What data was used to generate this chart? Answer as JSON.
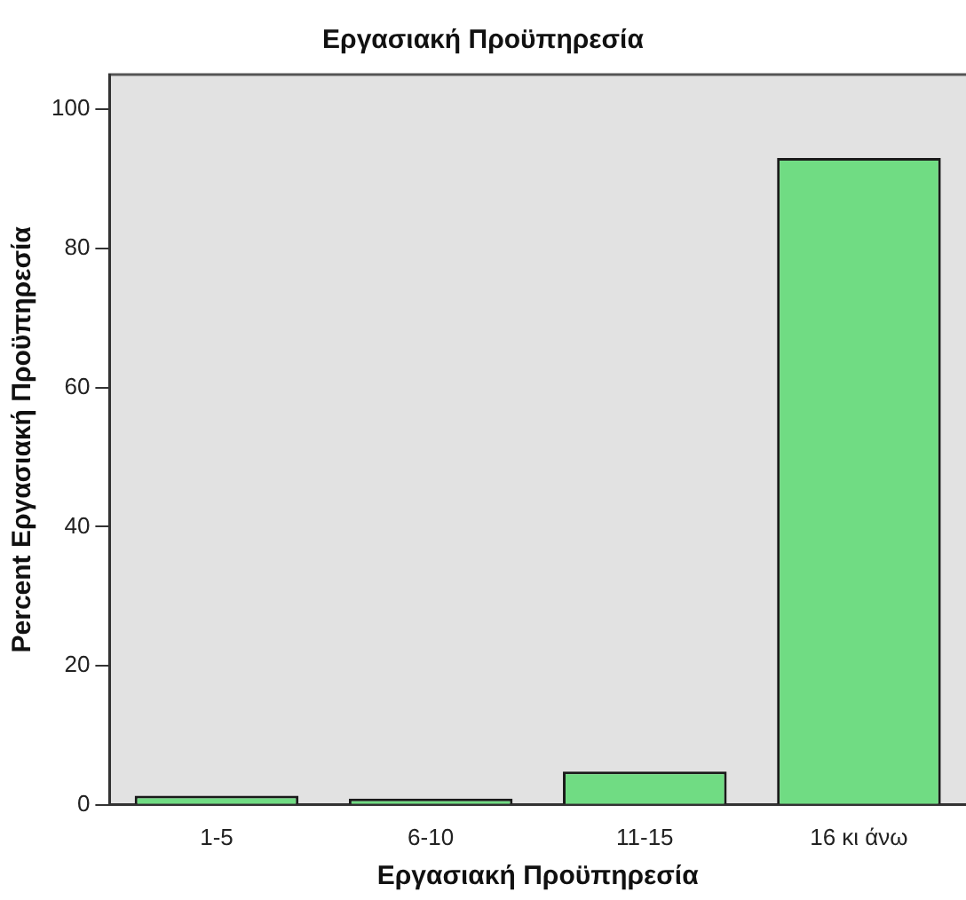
{
  "chart_data": {
    "type": "bar",
    "title": "Εργασιακή Προϋπηρεσία",
    "xlabel": "Εργασιακή Προϋπηρεσία",
    "ylabel": "Percent Εργασιακή Προϋπηρεσία",
    "categories": [
      "1-5",
      "6-10",
      "11-15",
      "16 κι άνω"
    ],
    "values": [
      1.3,
      0.9,
      4.8,
      93.0
    ],
    "color": "#70dc83",
    "ylim": [
      0,
      105
    ],
    "yticks": [
      0,
      20,
      40,
      60,
      80,
      100
    ],
    "grid": false,
    "legend": false
  }
}
